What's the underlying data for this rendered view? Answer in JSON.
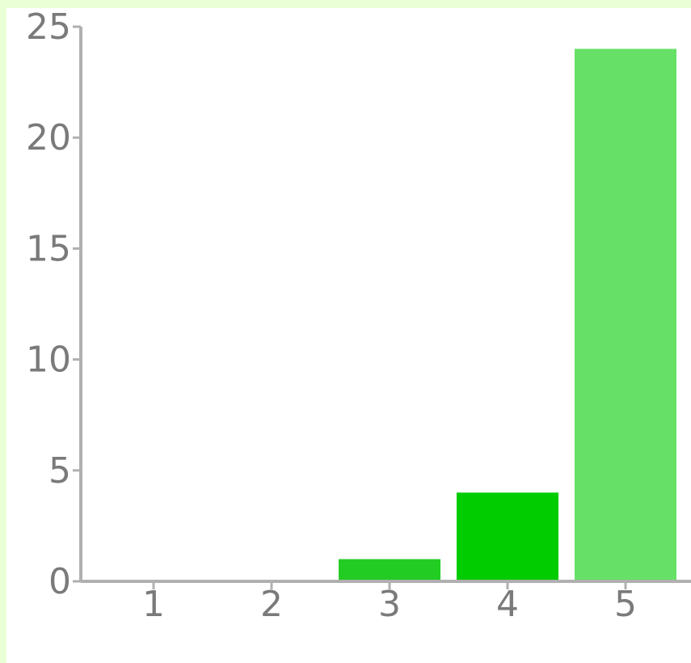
{
  "chart_data": {
    "type": "bar",
    "categories": [
      "1",
      "2",
      "3",
      "4",
      "5"
    ],
    "values": [
      0,
      0,
      1,
      4,
      24
    ],
    "colors": [
      "#22cc22",
      "#22cc22",
      "#22cc22",
      "#00cc00",
      "#66e066"
    ],
    "ylim": [
      0,
      25
    ],
    "yticks": [
      "0",
      "5",
      "10",
      "15",
      "20",
      "25"
    ],
    "grid": false,
    "legend": "none",
    "axis_color": "#b0b0b0"
  }
}
